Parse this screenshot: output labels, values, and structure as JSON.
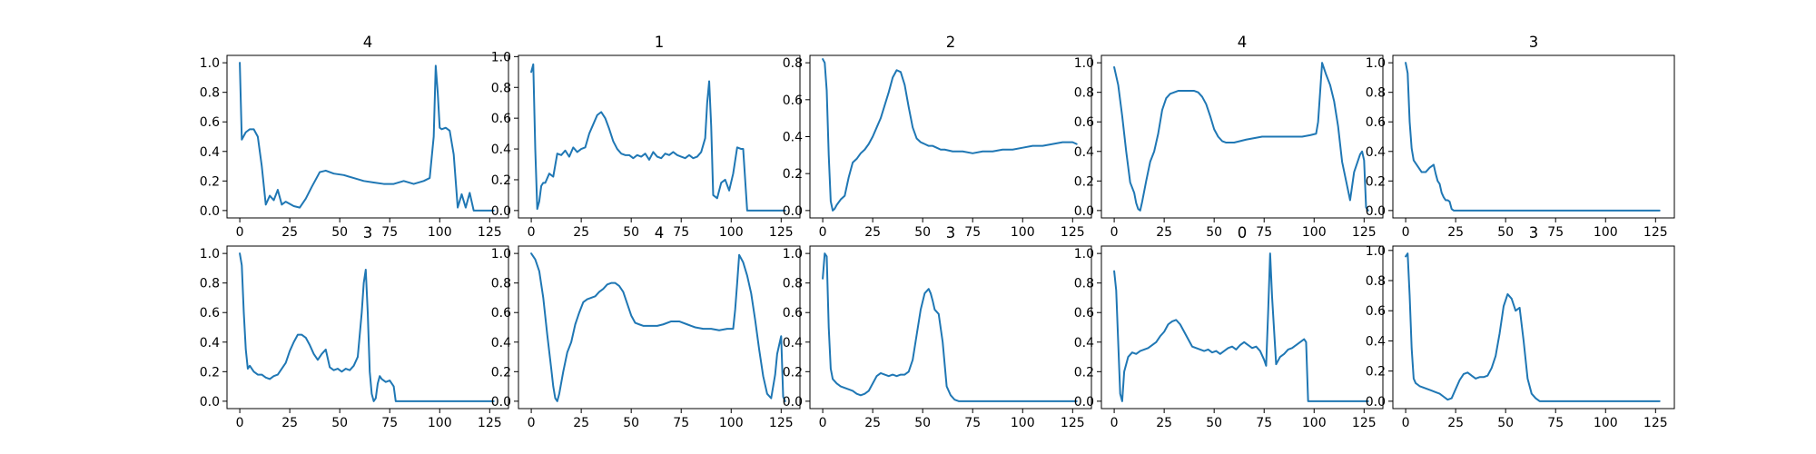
{
  "style": {
    "line_color": "#1f77b4",
    "background": "#ffffff"
  },
  "chart_data": [
    {
      "type": "line",
      "title": "4",
      "xlim": [
        -6.4,
        134.4
      ],
      "ylim": [
        -0.05,
        1.05
      ],
      "xticks": [
        0,
        25,
        50,
        75,
        100,
        125
      ],
      "yticks": [
        0.0,
        0.2,
        0.4,
        0.6,
        0.8,
        1.0
      ],
      "ytick_format": 1,
      "x": [
        0,
        1,
        3,
        5,
        7,
        9,
        11,
        13,
        15,
        17,
        19,
        21,
        23,
        27,
        30,
        33,
        36,
        40,
        43,
        47,
        52,
        57,
        62,
        67,
        72,
        77,
        82,
        87,
        92,
        95,
        97,
        98,
        99,
        100,
        101,
        103,
        105,
        107,
        109,
        111,
        113,
        115,
        117,
        119,
        121,
        123,
        125,
        127
      ],
      "y": [
        1.0,
        0.48,
        0.53,
        0.55,
        0.55,
        0.5,
        0.3,
        0.04,
        0.1,
        0.07,
        0.14,
        0.04,
        0.06,
        0.03,
        0.02,
        0.08,
        0.16,
        0.26,
        0.27,
        0.25,
        0.24,
        0.22,
        0.2,
        0.19,
        0.18,
        0.18,
        0.2,
        0.18,
        0.2,
        0.22,
        0.5,
        0.98,
        0.8,
        0.56,
        0.55,
        0.56,
        0.54,
        0.38,
        0.02,
        0.11,
        0.02,
        0.12,
        0.0,
        0.0,
        0.0,
        0.0,
        0.0,
        0.0
      ]
    },
    {
      "type": "line",
      "title": "1",
      "xlim": [
        -6.4,
        134.4
      ],
      "ylim": [
        -0.048,
        1.008
      ],
      "xticks": [
        0,
        25,
        50,
        75,
        100,
        125
      ],
      "yticks": [
        0.0,
        0.2,
        0.4,
        0.6,
        0.8,
        1.0
      ],
      "ytick_format": 1,
      "x": [
        0,
        1,
        2,
        3,
        4,
        5,
        6,
        7,
        9,
        11,
        13,
        15,
        17,
        19,
        21,
        23,
        25,
        27,
        29,
        31,
        33,
        35,
        37,
        39,
        41,
        43,
        45,
        47,
        49,
        51,
        53,
        55,
        57,
        59,
        61,
        63,
        65,
        67,
        69,
        71,
        73,
        75,
        77,
        79,
        81,
        83,
        85,
        87,
        88,
        89,
        90,
        91,
        93,
        95,
        97,
        99,
        101,
        103,
        105,
        106,
        108,
        112,
        116,
        120,
        124,
        127
      ],
      "y": [
        0.9,
        0.95,
        0.4,
        0.01,
        0.06,
        0.16,
        0.18,
        0.18,
        0.24,
        0.22,
        0.37,
        0.36,
        0.39,
        0.35,
        0.41,
        0.38,
        0.4,
        0.41,
        0.5,
        0.56,
        0.62,
        0.64,
        0.6,
        0.53,
        0.45,
        0.4,
        0.37,
        0.36,
        0.36,
        0.34,
        0.36,
        0.35,
        0.37,
        0.33,
        0.38,
        0.35,
        0.34,
        0.37,
        0.36,
        0.38,
        0.36,
        0.35,
        0.34,
        0.36,
        0.34,
        0.35,
        0.38,
        0.47,
        0.7,
        0.84,
        0.55,
        0.1,
        0.08,
        0.18,
        0.2,
        0.13,
        0.24,
        0.41,
        0.4,
        0.4,
        0.0,
        0.0,
        0.0,
        0.0,
        0.0,
        0.0
      ]
    },
    {
      "type": "line",
      "title": "2",
      "xlim": [
        -6.4,
        134.4
      ],
      "ylim": [
        -0.04,
        0.84
      ],
      "xticks": [
        0,
        25,
        50,
        75,
        100,
        125
      ],
      "yticks": [
        0.0,
        0.2,
        0.4,
        0.6,
        0.8
      ],
      "ytick_format": 1,
      "x": [
        0,
        1,
        2,
        3,
        4,
        5,
        6,
        7,
        9,
        11,
        13,
        15,
        17,
        19,
        21,
        23,
        25,
        27,
        29,
        31,
        33,
        35,
        37,
        39,
        41,
        43,
        45,
        47,
        49,
        51,
        53,
        55,
        57,
        59,
        61,
        65,
        70,
        75,
        80,
        85,
        90,
        95,
        100,
        105,
        110,
        115,
        120,
        125,
        127
      ],
      "y": [
        0.82,
        0.8,
        0.65,
        0.3,
        0.05,
        0.0,
        0.01,
        0.03,
        0.06,
        0.08,
        0.18,
        0.26,
        0.28,
        0.31,
        0.33,
        0.36,
        0.4,
        0.45,
        0.5,
        0.57,
        0.64,
        0.72,
        0.76,
        0.75,
        0.68,
        0.56,
        0.45,
        0.39,
        0.37,
        0.36,
        0.35,
        0.35,
        0.34,
        0.33,
        0.33,
        0.32,
        0.32,
        0.31,
        0.32,
        0.32,
        0.33,
        0.33,
        0.34,
        0.35,
        0.35,
        0.36,
        0.37,
        0.37,
        0.36
      ]
    },
    {
      "type": "line",
      "title": "4",
      "xlim": [
        -6.4,
        134.4
      ],
      "ylim": [
        -0.05,
        1.05
      ],
      "xticks": [
        0,
        25,
        50,
        75,
        100,
        125
      ],
      "yticks": [
        0.0,
        0.2,
        0.4,
        0.6,
        0.8,
        1.0
      ],
      "ytick_format": 1,
      "x": [
        0,
        2,
        4,
        6,
        8,
        10,
        11,
        12,
        13,
        14,
        16,
        18,
        20,
        22,
        24,
        26,
        28,
        30,
        32,
        34,
        36,
        38,
        40,
        42,
        44,
        46,
        48,
        50,
        52,
        54,
        56,
        58,
        60,
        63,
        66,
        70,
        74,
        78,
        82,
        86,
        90,
        94,
        98,
        101,
        102,
        103,
        104,
        106,
        108,
        110,
        112,
        114,
        116,
        118,
        120,
        122,
        123,
        124,
        125,
        126,
        127
      ],
      "y": [
        0.97,
        0.85,
        0.64,
        0.4,
        0.19,
        0.12,
        0.05,
        0.01,
        0.0,
        0.06,
        0.2,
        0.33,
        0.4,
        0.52,
        0.68,
        0.76,
        0.79,
        0.8,
        0.81,
        0.81,
        0.81,
        0.81,
        0.81,
        0.8,
        0.77,
        0.72,
        0.64,
        0.55,
        0.5,
        0.47,
        0.46,
        0.46,
        0.46,
        0.47,
        0.48,
        0.49,
        0.5,
        0.5,
        0.5,
        0.5,
        0.5,
        0.5,
        0.51,
        0.52,
        0.6,
        0.8,
        1.0,
        0.92,
        0.85,
        0.74,
        0.57,
        0.33,
        0.2,
        0.07,
        0.26,
        0.34,
        0.38,
        0.4,
        0.34,
        0.02,
        0.0
      ]
    },
    {
      "type": "line",
      "title": "3",
      "xlim": [
        -6.4,
        134.4
      ],
      "ylim": [
        -0.05,
        1.05
      ],
      "xticks": [
        0,
        25,
        50,
        75,
        100,
        125
      ],
      "yticks": [
        0.0,
        0.2,
        0.4,
        0.6,
        0.8,
        1.0
      ],
      "ytick_format": 1,
      "x": [
        0,
        1,
        2,
        3,
        4,
        6,
        8,
        10,
        12,
        14,
        15,
        16,
        17,
        18,
        19,
        20,
        21,
        22,
        23,
        24,
        25,
        30,
        40,
        50,
        60,
        70,
        80,
        90,
        100,
        110,
        120,
        127
      ],
      "y": [
        1.0,
        0.93,
        0.6,
        0.42,
        0.34,
        0.3,
        0.26,
        0.26,
        0.29,
        0.31,
        0.25,
        0.2,
        0.18,
        0.12,
        0.09,
        0.07,
        0.07,
        0.06,
        0.01,
        0.0,
        0.0,
        0.0,
        0.0,
        0.0,
        0.0,
        0.0,
        0.0,
        0.0,
        0.0,
        0.0,
        0.0,
        0.0
      ]
    },
    {
      "type": "line",
      "title": "3",
      "xlim": [
        -6.4,
        134.4
      ],
      "ylim": [
        -0.05,
        1.05
      ],
      "xticks": [
        0,
        25,
        50,
        75,
        100,
        125
      ],
      "yticks": [
        0.0,
        0.2,
        0.4,
        0.6,
        0.8,
        1.0
      ],
      "ytick_format": 1,
      "x": [
        0,
        1,
        2,
        3,
        4,
        5,
        7,
        9,
        11,
        13,
        15,
        17,
        19,
        21,
        23,
        25,
        27,
        29,
        31,
        33,
        35,
        37,
        39,
        41,
        43,
        45,
        47,
        49,
        51,
        53,
        55,
        57,
        59,
        61,
        62,
        63,
        64,
        65,
        66,
        67,
        68,
        69,
        70,
        71,
        73,
        75,
        77,
        78,
        80,
        90,
        100,
        110,
        120,
        127
      ],
      "y": [
        1.0,
        0.92,
        0.6,
        0.35,
        0.22,
        0.24,
        0.2,
        0.18,
        0.18,
        0.16,
        0.15,
        0.17,
        0.18,
        0.22,
        0.26,
        0.34,
        0.4,
        0.45,
        0.45,
        0.43,
        0.38,
        0.32,
        0.28,
        0.32,
        0.35,
        0.23,
        0.21,
        0.22,
        0.2,
        0.22,
        0.21,
        0.24,
        0.3,
        0.6,
        0.8,
        0.89,
        0.6,
        0.2,
        0.05,
        0.0,
        0.02,
        0.12,
        0.17,
        0.15,
        0.13,
        0.14,
        0.1,
        0.0,
        0.0,
        0.0,
        0.0,
        0.0,
        0.0,
        0.0
      ]
    },
    {
      "type": "line",
      "title": "4",
      "xlim": [
        -6.4,
        134.4
      ],
      "ylim": [
        -0.05,
        1.05
      ],
      "xticks": [
        0,
        25,
        50,
        75,
        100,
        125
      ],
      "yticks": [
        0.0,
        0.2,
        0.4,
        0.6,
        0.8,
        1.0
      ],
      "ytick_format": 1,
      "x": [
        0,
        2,
        4,
        6,
        8,
        10,
        11,
        12,
        13,
        14,
        16,
        18,
        20,
        22,
        24,
        26,
        28,
        30,
        32,
        34,
        36,
        38,
        40,
        42,
        44,
        46,
        48,
        50,
        52,
        54,
        56,
        58,
        60,
        63,
        66,
        70,
        74,
        78,
        82,
        86,
        90,
        94,
        98,
        101,
        102,
        103,
        104,
        106,
        108,
        110,
        112,
        114,
        116,
        118,
        120,
        122,
        123,
        124,
        125,
        126,
        127
      ],
      "y": [
        1.0,
        0.96,
        0.88,
        0.7,
        0.45,
        0.22,
        0.1,
        0.02,
        0.0,
        0.05,
        0.2,
        0.33,
        0.4,
        0.52,
        0.6,
        0.67,
        0.69,
        0.7,
        0.71,
        0.74,
        0.76,
        0.79,
        0.8,
        0.8,
        0.78,
        0.74,
        0.66,
        0.58,
        0.53,
        0.52,
        0.51,
        0.51,
        0.51,
        0.51,
        0.52,
        0.54,
        0.54,
        0.52,
        0.5,
        0.49,
        0.49,
        0.48,
        0.49,
        0.49,
        0.62,
        0.8,
        0.99,
        0.94,
        0.85,
        0.73,
        0.55,
        0.35,
        0.17,
        0.05,
        0.02,
        0.18,
        0.32,
        0.38,
        0.44,
        0.03,
        0.0
      ]
    },
    {
      "type": "line",
      "title": "3",
      "xlim": [
        -6.4,
        134.4
      ],
      "ylim": [
        -0.05,
        1.05
      ],
      "xticks": [
        0,
        25,
        50,
        75,
        100,
        125
      ],
      "yticks": [
        0.0,
        0.2,
        0.4,
        0.6,
        0.8,
        1.0
      ],
      "ytick_format": 1,
      "x": [
        0,
        1,
        2,
        3,
        4,
        5,
        7,
        9,
        11,
        13,
        15,
        17,
        19,
        21,
        23,
        25,
        27,
        29,
        31,
        33,
        35,
        37,
        39,
        41,
        43,
        45,
        47,
        49,
        51,
        53,
        54,
        55,
        56,
        58,
        60,
        62,
        64,
        66,
        68,
        70,
        72,
        75,
        80,
        90,
        100,
        110,
        120,
        127
      ],
      "y": [
        0.83,
        1.0,
        0.98,
        0.5,
        0.22,
        0.15,
        0.12,
        0.1,
        0.09,
        0.08,
        0.07,
        0.05,
        0.04,
        0.05,
        0.07,
        0.12,
        0.17,
        0.19,
        0.18,
        0.17,
        0.18,
        0.17,
        0.18,
        0.18,
        0.2,
        0.28,
        0.45,
        0.62,
        0.73,
        0.76,
        0.73,
        0.68,
        0.62,
        0.59,
        0.4,
        0.1,
        0.04,
        0.01,
        0.0,
        0.0,
        0.0,
        0.0,
        0.0,
        0.0,
        0.0,
        0.0,
        0.0,
        0.0
      ]
    },
    {
      "type": "line",
      "title": "0",
      "xlim": [
        -6.4,
        134.4
      ],
      "ylim": [
        -0.05,
        1.05
      ],
      "xticks": [
        0,
        25,
        50,
        75,
        100,
        125
      ],
      "yticks": [
        0.0,
        0.2,
        0.4,
        0.6,
        0.8,
        1.0
      ],
      "ytick_format": 1,
      "x": [
        0,
        1,
        2,
        3,
        4,
        5,
        7,
        9,
        11,
        13,
        15,
        17,
        19,
        21,
        23,
        25,
        27,
        29,
        31,
        33,
        35,
        37,
        39,
        41,
        43,
        45,
        47,
        49,
        51,
        53,
        55,
        57,
        59,
        61,
        63,
        65,
        67,
        69,
        71,
        73,
        75,
        76,
        77,
        78,
        79,
        81,
        83,
        85,
        87,
        89,
        91,
        93,
        95,
        96,
        97,
        99,
        105,
        115,
        125,
        127
      ],
      "y": [
        0.88,
        0.75,
        0.4,
        0.05,
        0.0,
        0.2,
        0.3,
        0.33,
        0.32,
        0.34,
        0.35,
        0.36,
        0.38,
        0.4,
        0.44,
        0.47,
        0.52,
        0.54,
        0.55,
        0.52,
        0.47,
        0.42,
        0.37,
        0.36,
        0.35,
        0.34,
        0.35,
        0.33,
        0.34,
        0.32,
        0.34,
        0.36,
        0.37,
        0.35,
        0.38,
        0.4,
        0.38,
        0.36,
        0.37,
        0.34,
        0.28,
        0.24,
        0.6,
        1.0,
        0.7,
        0.25,
        0.3,
        0.32,
        0.35,
        0.36,
        0.38,
        0.4,
        0.42,
        0.4,
        0.0,
        0.0,
        0.0,
        0.0,
        0.0,
        0.0
      ]
    },
    {
      "type": "line",
      "title": "3",
      "xlim": [
        -6.4,
        134.4
      ],
      "ylim": [
        -0.049,
        1.029
      ],
      "xticks": [
        0,
        25,
        50,
        75,
        100,
        125
      ],
      "yticks": [
        0.0,
        0.2,
        0.4,
        0.6,
        0.8,
        1.0
      ],
      "ytick_format": 1,
      "x": [
        0,
        1,
        2,
        3,
        4,
        5,
        7,
        9,
        11,
        13,
        15,
        17,
        19,
        21,
        23,
        25,
        27,
        29,
        31,
        33,
        35,
        37,
        39,
        41,
        43,
        45,
        47,
        49,
        51,
        53,
        55,
        57,
        59,
        61,
        63,
        65,
        67,
        69,
        72,
        75,
        80,
        90,
        100,
        110,
        120,
        127
      ],
      "y": [
        0.96,
        0.98,
        0.7,
        0.35,
        0.15,
        0.12,
        0.1,
        0.09,
        0.08,
        0.07,
        0.06,
        0.05,
        0.03,
        0.01,
        0.02,
        0.08,
        0.14,
        0.18,
        0.19,
        0.17,
        0.15,
        0.16,
        0.16,
        0.17,
        0.22,
        0.3,
        0.45,
        0.63,
        0.71,
        0.68,
        0.6,
        0.62,
        0.4,
        0.15,
        0.05,
        0.02,
        0.0,
        0.0,
        0.0,
        0.0,
        0.0,
        0.0,
        0.0,
        0.0,
        0.0,
        0.0
      ]
    }
  ]
}
